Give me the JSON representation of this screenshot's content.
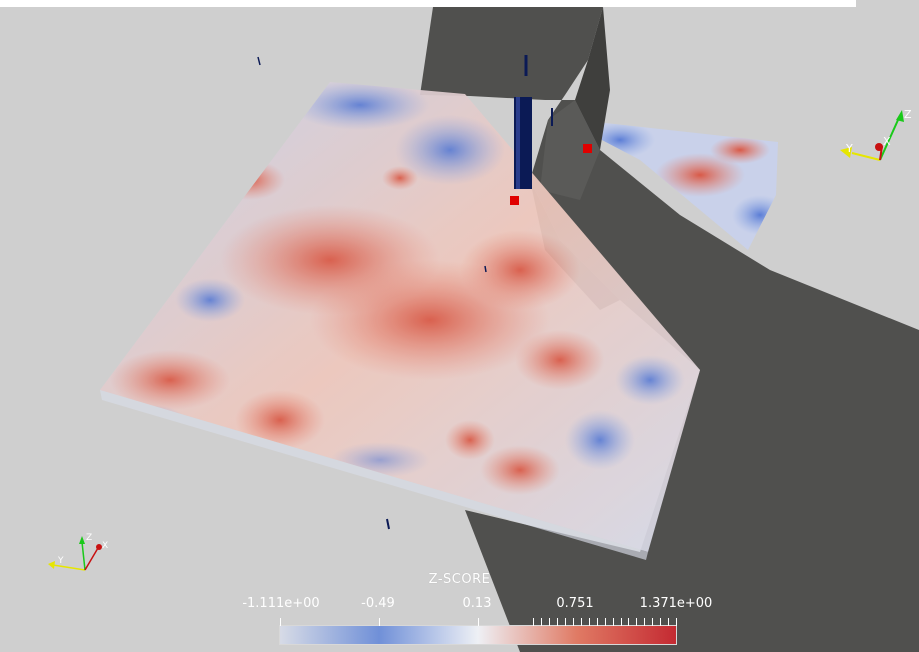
{
  "colorbar": {
    "title": "Z-SCORE",
    "labels": [
      "-1.111e+00",
      "-0.49",
      "0.13",
      "0.751",
      "1.371e+00"
    ],
    "colors": [
      "#d7dbe6",
      "#7090d8",
      "#eef0f5",
      "#e07a64",
      "#c42a32"
    ]
  },
  "axes": {
    "main": {
      "x_label": "X",
      "y_label": "Y",
      "z_label": "Z"
    },
    "small": {
      "x_label": "X",
      "y_label": "Y",
      "z_label": "Z"
    }
  },
  "colors": {
    "background": "#cfcfcf",
    "structure": "#4a4a48",
    "marker": "#e00000",
    "probe": "#0b1a55"
  }
}
